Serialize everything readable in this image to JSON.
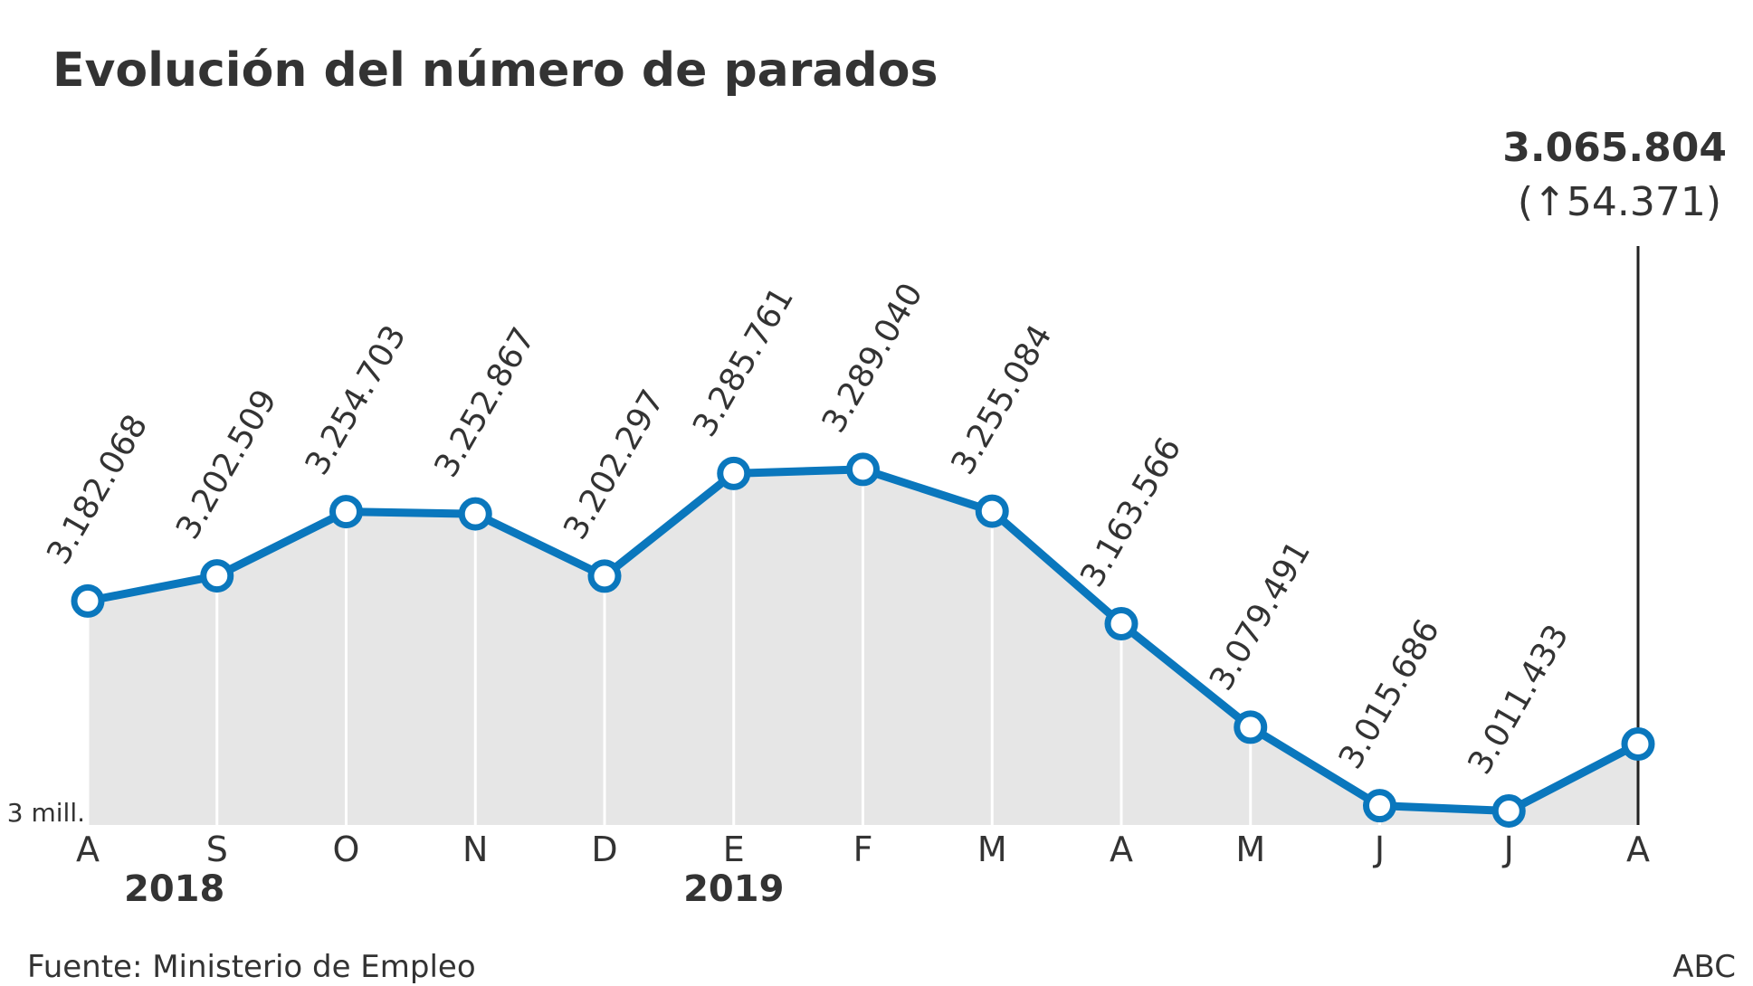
{
  "chart_data": {
    "type": "line",
    "title": "Evolución del número de parados",
    "categories": [
      "A",
      "S",
      "O",
      "N",
      "D",
      "E",
      "F",
      "M",
      "A",
      "M",
      "J",
      "J",
      "A"
    ],
    "x_groups": [
      {
        "label": "2018",
        "start": 0
      },
      {
        "label": "2019",
        "start": 5
      }
    ],
    "series": [
      {
        "name": "Parados",
        "color": "#0a77bd",
        "values": [
          3182068,
          3202509,
          3254703,
          3252867,
          3202297,
          3285761,
          3289040,
          3255084,
          3163566,
          3079491,
          3015686,
          3011433,
          3065804
        ],
        "value_labels": [
          "3.182.068",
          "3.202.509",
          "3.254.703",
          "3.252.867",
          "3.202.297",
          "3.285.761",
          "3.289.040",
          "3.255.084",
          "3.163.566",
          "3.079.491",
          "3.015.686",
          "3.011.433",
          "3.065.804"
        ]
      }
    ],
    "annotation": "(↑54.371)",
    "ylim": [
      3000000,
      3300000
    ],
    "yticks": [
      {
        "value": 3000000,
        "label": "3 mill."
      }
    ],
    "area_color": "#e6e6e6",
    "source": "Fuente: Ministerio de Empleo",
    "credit": "ABC"
  }
}
